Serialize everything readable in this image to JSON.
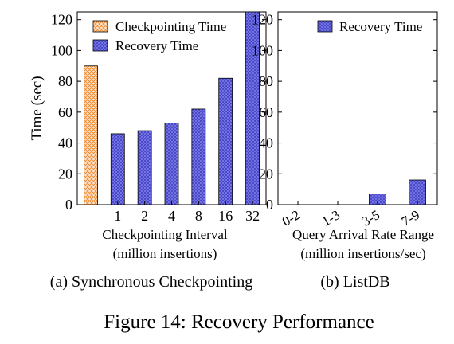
{
  "figure_caption": "Figure 14: Recovery Performance",
  "colors": {
    "checkpoint": "#f4a460",
    "recovery": "#5a5ad6"
  },
  "chart_data": [
    {
      "type": "bar",
      "panel_label": "(a) Synchronous Checkpointing",
      "ylabel": "Time (sec)",
      "xlabel": "Checkpointing Interval",
      "xlabel2": "(million insertions)",
      "ylim": [
        0,
        125
      ],
      "yticks": [
        0,
        20,
        40,
        60,
        80,
        100,
        120
      ],
      "categories": [
        "",
        "1",
        "2",
        "4",
        "8",
        "16",
        "32"
      ],
      "series": [
        {
          "name": "Checkpointing Time",
          "values": [
            90,
            null,
            null,
            null,
            null,
            null,
            null
          ]
        },
        {
          "name": "Recovery Time",
          "values": [
            null,
            46,
            48,
            53,
            62,
            82,
            125
          ]
        }
      ],
      "legend": "top-left",
      "grid": false
    },
    {
      "type": "bar",
      "panel_label": "(b) ListDB",
      "xlabel": "Query Arrival Rate Range",
      "xlabel2": "(million insertions/sec)",
      "ylim": [
        0,
        125
      ],
      "yticks": [
        0,
        20,
        40,
        60,
        80,
        100,
        120
      ],
      "categories": [
        "0-2",
        "1-3",
        "3-5",
        "7-9"
      ],
      "series": [
        {
          "name": "Recovery Time",
          "values": [
            0,
            0,
            7,
            16
          ]
        }
      ],
      "legend": "top-right",
      "grid": false
    }
  ]
}
